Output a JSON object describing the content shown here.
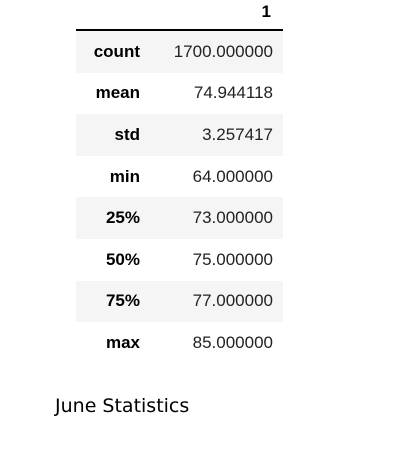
{
  "table": {
    "column_header": "1",
    "rows": [
      {
        "label": "count",
        "value": "1700.000000"
      },
      {
        "label": "mean",
        "value": "74.944118"
      },
      {
        "label": "std",
        "value": "3.257417"
      },
      {
        "label": "min",
        "value": "64.000000"
      },
      {
        "label": "25%",
        "value": "73.000000"
      },
      {
        "label": "50%",
        "value": "75.000000"
      },
      {
        "label": "75%",
        "value": "77.000000"
      },
      {
        "label": "max",
        "value": "85.000000"
      }
    ]
  },
  "caption": "June Statistics",
  "colors": {
    "row_shade": "#f5f5f5",
    "header_rule": "#000000"
  }
}
